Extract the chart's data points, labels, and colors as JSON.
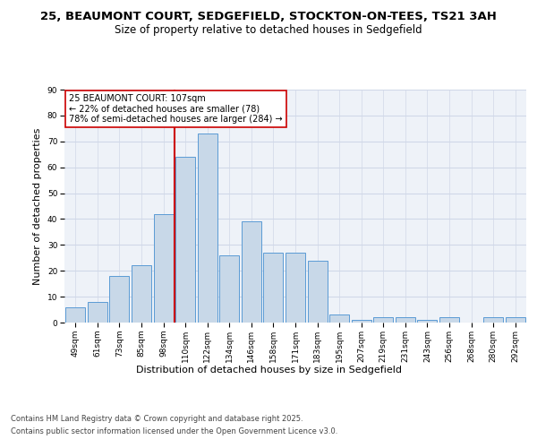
{
  "title1": "25, BEAUMONT COURT, SEDGEFIELD, STOCKTON-ON-TEES, TS21 3AH",
  "title2": "Size of property relative to detached houses in Sedgefield",
  "xlabel": "Distribution of detached houses by size in Sedgefield",
  "ylabel": "Number of detached properties",
  "categories": [
    "49sqm",
    "61sqm",
    "73sqm",
    "85sqm",
    "98sqm",
    "110sqm",
    "122sqm",
    "134sqm",
    "146sqm",
    "158sqm",
    "171sqm",
    "183sqm",
    "195sqm",
    "207sqm",
    "219sqm",
    "231sqm",
    "243sqm",
    "256sqm",
    "268sqm",
    "280sqm",
    "292sqm"
  ],
  "values": [
    6,
    8,
    18,
    22,
    42,
    64,
    73,
    26,
    39,
    27,
    27,
    24,
    3,
    1,
    2,
    2,
    1,
    2,
    0,
    2,
    2
  ],
  "bar_color": "#c8d8e8",
  "bar_edge_color": "#5b9bd5",
  "vline_color": "#cc0000",
  "annotation_box_text": "25 BEAUMONT COURT: 107sqm\n← 22% of detached houses are smaller (78)\n78% of semi-detached houses are larger (284) →",
  "annotation_box_color": "#ffffff",
  "annotation_box_edge": "#cc0000",
  "ylim": [
    0,
    90
  ],
  "yticks": [
    0,
    10,
    20,
    30,
    40,
    50,
    60,
    70,
    80,
    90
  ],
  "grid_color": "#d0d8e8",
  "background_color": "#eef2f8",
  "footer1": "Contains HM Land Registry data © Crown copyright and database right 2025.",
  "footer2": "Contains public sector information licensed under the Open Government Licence v3.0.",
  "title_fontsize": 9.5,
  "subtitle_fontsize": 8.5,
  "axis_label_fontsize": 8,
  "tick_fontsize": 6.5,
  "annotation_fontsize": 7,
  "footer_fontsize": 6
}
